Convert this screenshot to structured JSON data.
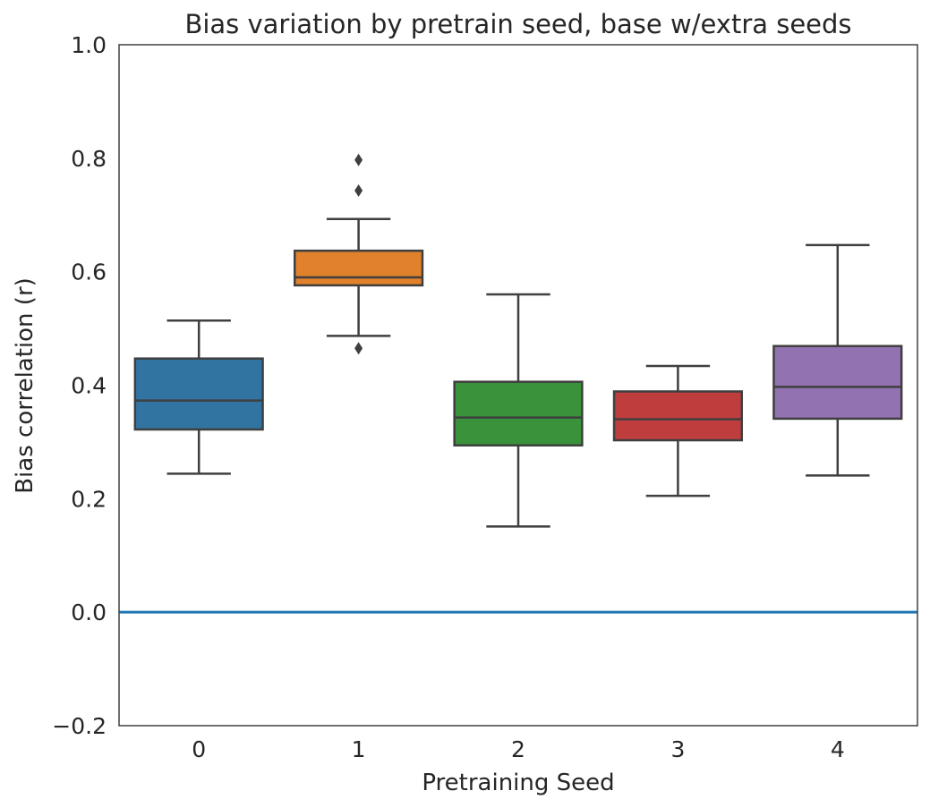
{
  "chart_data": {
    "type": "box",
    "title": "Bias variation by pretrain seed, base w/extra seeds",
    "xlabel": "Pretraining Seed",
    "ylabel": "Bias correlation (r)",
    "ylim": [
      -0.2,
      1.0
    ],
    "yticks": [
      {
        "value": -0.2,
        "label": "−0.2"
      },
      {
        "value": 0.0,
        "label": "0.0"
      },
      {
        "value": 0.2,
        "label": "0.2"
      },
      {
        "value": 0.4,
        "label": "0.4"
      },
      {
        "value": 0.6,
        "label": "0.6"
      },
      {
        "value": 0.8,
        "label": "0.8"
      },
      {
        "value": 1.0,
        "label": "1.0"
      }
    ],
    "reference_line": {
      "y": 0.0,
      "color": "#1f77b4"
    },
    "grid": false,
    "categories": [
      "0",
      "1",
      "2",
      "3",
      "4"
    ],
    "boxes": [
      {
        "category": "0",
        "color": "#3274a1",
        "whisker_low": 0.244,
        "q1": 0.322,
        "median": 0.373,
        "q3": 0.447,
        "whisker_high": 0.514,
        "outliers": []
      },
      {
        "category": "1",
        "color": "#e1812c",
        "whisker_low": 0.487,
        "q1": 0.576,
        "median": 0.59,
        "q3": 0.637,
        "whisker_high": 0.693,
        "outliers": [
          0.465,
          0.743,
          0.797
        ]
      },
      {
        "category": "2",
        "color": "#3a923a",
        "whisker_low": 0.151,
        "q1": 0.294,
        "median": 0.343,
        "q3": 0.406,
        "whisker_high": 0.56,
        "outliers": []
      },
      {
        "category": "3",
        "color": "#c03d3e",
        "whisker_low": 0.205,
        "q1": 0.303,
        "median": 0.34,
        "q3": 0.389,
        "whisker_high": 0.434,
        "outliers": []
      },
      {
        "category": "4",
        "color": "#9372b2",
        "whisker_low": 0.241,
        "q1": 0.341,
        "median": 0.397,
        "q3": 0.469,
        "whisker_high": 0.647,
        "outliers": []
      }
    ]
  }
}
